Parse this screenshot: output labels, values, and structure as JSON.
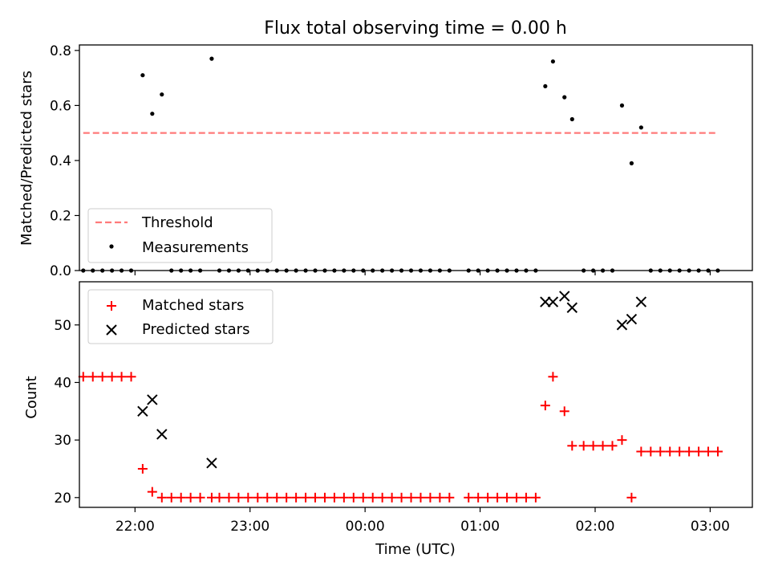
{
  "figure": {
    "title": "Flux total observing time = 0.00 h",
    "xlabel": "Time (UTC)"
  },
  "chart_data": [
    {
      "type": "scatter",
      "panel": "top",
      "ylabel": "Matched/Predicted stars",
      "xlim": [
        "21:31",
        "03:22"
      ],
      "ylim": [
        0,
        0.82
      ],
      "yticks": [
        0.0,
        0.2,
        0.4,
        0.6,
        0.8
      ],
      "ytick_labels": [
        "0.0",
        "0.2",
        "0.4",
        "0.6",
        "0.8"
      ],
      "xticks": [
        "22:00",
        "23:00",
        "00:00",
        "01:00",
        "02:00",
        "03:00"
      ],
      "legend_position": "lower-left",
      "threshold": {
        "name": "Threshold",
        "value": 0.5,
        "x_start": "21:33",
        "x_end": "03:03",
        "color": "#ff7a7a"
      },
      "series": [
        {
          "name": "Measurements",
          "color": "#000000",
          "points": [
            [
              "21:33",
              0.0
            ],
            [
              "21:38",
              0.0
            ],
            [
              "21:43",
              0.0
            ],
            [
              "21:48",
              0.0
            ],
            [
              "21:53",
              0.0
            ],
            [
              "21:58",
              0.0
            ],
            [
              "22:04",
              0.71
            ],
            [
              "22:09",
              0.57
            ],
            [
              "22:14",
              0.64
            ],
            [
              "22:19",
              0.0
            ],
            [
              "22:24",
              0.0
            ],
            [
              "22:29",
              0.0
            ],
            [
              "22:34",
              0.0
            ],
            [
              "22:40",
              0.77
            ],
            [
              "22:44",
              0.0
            ],
            [
              "22:49",
              0.0
            ],
            [
              "22:54",
              0.0
            ],
            [
              "22:59",
              0.0
            ],
            [
              "23:04",
              0.0
            ],
            [
              "23:09",
              0.0
            ],
            [
              "23:14",
              0.0
            ],
            [
              "23:19",
              0.0
            ],
            [
              "23:24",
              0.0
            ],
            [
              "23:29",
              0.0
            ],
            [
              "23:34",
              0.0
            ],
            [
              "23:39",
              0.0
            ],
            [
              "23:44",
              0.0
            ],
            [
              "23:49",
              0.0
            ],
            [
              "23:54",
              0.0
            ],
            [
              "23:59",
              0.0
            ],
            [
              "00:04",
              0.0
            ],
            [
              "00:09",
              0.0
            ],
            [
              "00:14",
              0.0
            ],
            [
              "00:19",
              0.0
            ],
            [
              "00:24",
              0.0
            ],
            [
              "00:29",
              0.0
            ],
            [
              "00:34",
              0.0
            ],
            [
              "00:39",
              0.0
            ],
            [
              "00:44",
              0.0
            ],
            [
              "00:54",
              0.0
            ],
            [
              "00:59",
              0.0
            ],
            [
              "01:04",
              0.0
            ],
            [
              "01:09",
              0.0
            ],
            [
              "01:14",
              0.0
            ],
            [
              "01:19",
              0.0
            ],
            [
              "01:24",
              0.0
            ],
            [
              "01:29",
              0.0
            ],
            [
              "01:34",
              0.67
            ],
            [
              "01:38",
              0.76
            ],
            [
              "01:44",
              0.63
            ],
            [
              "01:48",
              0.55
            ],
            [
              "01:54",
              0.0
            ],
            [
              "01:59",
              0.0
            ],
            [
              "02:04",
              0.0
            ],
            [
              "02:09",
              0.0
            ],
            [
              "02:14",
              0.6
            ],
            [
              "02:19",
              0.39
            ],
            [
              "02:24",
              0.52
            ],
            [
              "02:29",
              0.0
            ],
            [
              "02:34",
              0.0
            ],
            [
              "02:39",
              0.0
            ],
            [
              "02:44",
              0.0
            ],
            [
              "02:49",
              0.0
            ],
            [
              "02:54",
              0.0
            ],
            [
              "02:59",
              0.0
            ],
            [
              "03:04",
              0.0
            ]
          ]
        }
      ]
    },
    {
      "type": "scatter",
      "panel": "bottom",
      "ylabel": "Count",
      "xlim": [
        "21:31",
        "03:22"
      ],
      "ylim": [
        18.3,
        57.5
      ],
      "yticks": [
        20,
        30,
        40,
        50
      ],
      "ytick_labels": [
        "20",
        "30",
        "40",
        "50"
      ],
      "xticks": [
        "22:00",
        "23:00",
        "00:00",
        "01:00",
        "02:00",
        "03:00"
      ],
      "legend_position": "upper-left",
      "series": [
        {
          "name": "Matched stars",
          "marker": "plus",
          "color": "#ff0000",
          "points": [
            [
              "21:33",
              41
            ],
            [
              "21:38",
              41
            ],
            [
              "21:43",
              41
            ],
            [
              "21:48",
              41
            ],
            [
              "21:53",
              41
            ],
            [
              "21:58",
              41
            ],
            [
              "22:04",
              25
            ],
            [
              "22:09",
              21
            ],
            [
              "22:14",
              20
            ],
            [
              "22:19",
              20
            ],
            [
              "22:24",
              20
            ],
            [
              "22:29",
              20
            ],
            [
              "22:34",
              20
            ],
            [
              "22:40",
              20
            ],
            [
              "22:44",
              20
            ],
            [
              "22:49",
              20
            ],
            [
              "22:54",
              20
            ],
            [
              "22:59",
              20
            ],
            [
              "23:04",
              20
            ],
            [
              "23:09",
              20
            ],
            [
              "23:14",
              20
            ],
            [
              "23:19",
              20
            ],
            [
              "23:24",
              20
            ],
            [
              "23:29",
              20
            ],
            [
              "23:34",
              20
            ],
            [
              "23:39",
              20
            ],
            [
              "23:44",
              20
            ],
            [
              "23:49",
              20
            ],
            [
              "23:54",
              20
            ],
            [
              "23:59",
              20
            ],
            [
              "00:04",
              20
            ],
            [
              "00:09",
              20
            ],
            [
              "00:14",
              20
            ],
            [
              "00:19",
              20
            ],
            [
              "00:24",
              20
            ],
            [
              "00:29",
              20
            ],
            [
              "00:34",
              20
            ],
            [
              "00:39",
              20
            ],
            [
              "00:44",
              20
            ],
            [
              "00:54",
              20
            ],
            [
              "00:59",
              20
            ],
            [
              "01:04",
              20
            ],
            [
              "01:09",
              20
            ],
            [
              "01:14",
              20
            ],
            [
              "01:19",
              20
            ],
            [
              "01:24",
              20
            ],
            [
              "01:29",
              20
            ],
            [
              "01:34",
              36
            ],
            [
              "01:38",
              41
            ],
            [
              "01:44",
              35
            ],
            [
              "01:48",
              29
            ],
            [
              "01:54",
              29
            ],
            [
              "01:59",
              29
            ],
            [
              "02:04",
              29
            ],
            [
              "02:09",
              29
            ],
            [
              "02:14",
              30
            ],
            [
              "02:19",
              20
            ],
            [
              "02:24",
              28
            ],
            [
              "02:29",
              28
            ],
            [
              "02:34",
              28
            ],
            [
              "02:39",
              28
            ],
            [
              "02:44",
              28
            ],
            [
              "02:49",
              28
            ],
            [
              "02:54",
              28
            ],
            [
              "02:59",
              28
            ],
            [
              "03:04",
              28
            ]
          ]
        },
        {
          "name": "Predicted stars",
          "marker": "x",
          "color": "#000000",
          "points": [
            [
              "22:04",
              35
            ],
            [
              "22:09",
              37
            ],
            [
              "22:14",
              31
            ],
            [
              "22:40",
              26
            ],
            [
              "01:34",
              54
            ],
            [
              "01:38",
              54
            ],
            [
              "01:44",
              55
            ],
            [
              "01:48",
              53
            ],
            [
              "02:14",
              50
            ],
            [
              "02:19",
              51
            ],
            [
              "02:24",
              54
            ]
          ]
        }
      ]
    }
  ]
}
